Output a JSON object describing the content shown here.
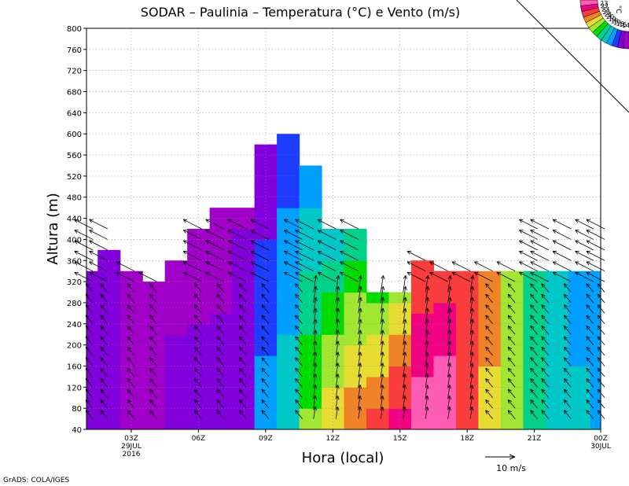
{
  "chart_data": {
    "type": "heatmap",
    "title": "SODAR – Paulinia – Temperatura (°C) e Vento (m/s)",
    "xlabel": "Hora (local)",
    "ylabel": "Altura (m)",
    "x_range_hours": [
      0,
      23
    ],
    "ylim": [
      40,
      800
    ],
    "y_ticks": [
      40,
      80,
      120,
      160,
      200,
      240,
      280,
      320,
      360,
      400,
      440,
      480,
      520,
      560,
      600,
      640,
      680,
      720,
      760,
      800
    ],
    "x_ticks": [
      {
        "hour": 2,
        "label": "03Z",
        "sub1": "29JUL",
        "sub2": "2016"
      },
      {
        "hour": 5,
        "label": "06Z",
        "sub1": "",
        "sub2": ""
      },
      {
        "hour": 8,
        "label": "09Z",
        "sub1": "",
        "sub2": ""
      },
      {
        "hour": 11,
        "label": "12Z",
        "sub1": "",
        "sub2": ""
      },
      {
        "hour": 14,
        "label": "15Z",
        "sub1": "",
        "sub2": ""
      },
      {
        "hour": 17,
        "label": "18Z",
        "sub1": "",
        "sub2": ""
      },
      {
        "hour": 20,
        "label": "21Z",
        "sub1": "",
        "sub2": ""
      },
      {
        "hour": 23,
        "label": "00Z",
        "sub1": "30JUL",
        "sub2": ""
      }
    ],
    "grid": true,
    "legend_placement": "top-right",
    "colorbar": {
      "unit": "°C",
      "labels": [
        "14",
        "15",
        "16",
        "17",
        "18",
        "19",
        "20",
        "21",
        "21",
        "22",
        "22",
        "23"
      ],
      "colors": [
        "#a000c8",
        "#8200dc",
        "#1e3cff",
        "#00a0ff",
        "#00c8c8",
        "#00d28c",
        "#00dc00",
        "#a0e632",
        "#e6dc32",
        "#f08228",
        "#fa3c3c",
        "#f00082",
        "#ff5ab4"
      ]
    },
    "data_top_m": [
      340,
      380,
      340,
      320,
      360,
      420,
      460,
      460,
      580,
      600,
      540,
      420,
      420,
      300,
      300,
      360,
      340,
      340,
      340,
      340,
      340,
      340,
      340,
      340
    ],
    "temperature_profiles": [
      {
        "hour": 0,
        "bottom": 15.0,
        "top": 15.0
      },
      {
        "hour": 1,
        "bottom": 14.8,
        "top": 15.0
      },
      {
        "hour": 2,
        "bottom": 14.6,
        "top": 14.6
      },
      {
        "hour": 3,
        "bottom": 14.6,
        "top": 14.6
      },
      {
        "hour": 4,
        "bottom": 14.8,
        "top": 14.6
      },
      {
        "hour": 5,
        "bottom": 14.8,
        "top": 14.6
      },
      {
        "hour": 6,
        "bottom": 14.8,
        "top": 14.6
      },
      {
        "hour": 7,
        "bottom": 15.2,
        "top": 14.7
      },
      {
        "hour": 8,
        "bottom": 16.0,
        "top": 14.8
      },
      {
        "hour": 9,
        "bottom": 17.0,
        "top": 15.3
      },
      {
        "hour": 10,
        "bottom": 19.0,
        "top": 16.0
      },
      {
        "hour": 11,
        "bottom": 20.5,
        "top": 16.7
      },
      {
        "hour": 12,
        "bottom": 21.5,
        "top": 17.4
      },
      {
        "hour": 13,
        "bottom": 22.0,
        "top": 18.6
      },
      {
        "hour": 14,
        "bottom": 22.5,
        "top": 19.6
      },
      {
        "hour": 15,
        "bottom": 23.0,
        "top": 21.5
      },
      {
        "hour": 16,
        "bottom": 23.0,
        "top": 21.8
      },
      {
        "hour": 17,
        "bottom": 22.0,
        "top": 21.6
      },
      {
        "hour": 18,
        "bottom": 20.5,
        "top": 21.0
      },
      {
        "hour": 19,
        "bottom": 19.0,
        "top": 19.6
      },
      {
        "hour": 20,
        "bottom": 17.8,
        "top": 17.6
      },
      {
        "hour": 21,
        "bottom": 17.0,
        "top": 16.8
      },
      {
        "hour": 22,
        "bottom": 16.6,
        "top": 16.2
      },
      {
        "hour": 23,
        "bottom": 15.8,
        "top": 16.0
      }
    ],
    "wind_reference": {
      "speed_ms": 10,
      "label": "10 m/s"
    },
    "wind_time_columns_hours": [
      0,
      0.8,
      2,
      3,
      5,
      6,
      7,
      8,
      9.5,
      10,
      11,
      12,
      13,
      14,
      15,
      16,
      17,
      18,
      19,
      20,
      20.5,
      21.5,
      22.5,
      23
    ],
    "credit": "GrADS: COLA/IGES"
  }
}
